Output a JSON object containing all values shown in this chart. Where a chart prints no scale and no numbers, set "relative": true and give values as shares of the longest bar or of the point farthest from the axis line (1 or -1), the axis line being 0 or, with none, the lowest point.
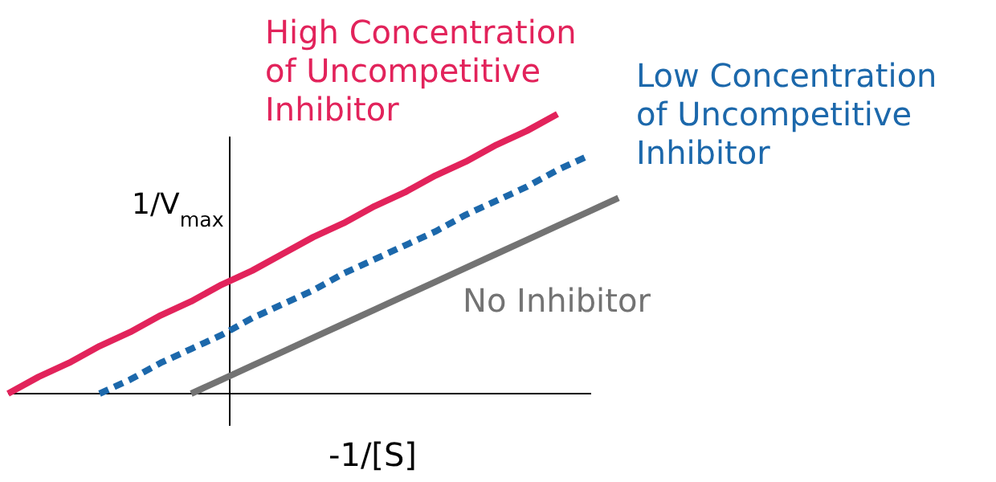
{
  "chart_data": {
    "type": "line",
    "relative": true,
    "xlabel": "-1/[S]",
    "ylabel": "1/V$_{max}$",
    "legend": false,
    "marker": "none",
    "categories": [
      null,
      null,
      null,
      null,
      null,
      null,
      null,
      null,
      null,
      null,
      null,
      null,
      null,
      null,
      null,
      null,
      null,
      null,
      null,
      null,
      null
    ],
    "series": [
      {
        "name": "High Concentration of Uncompetitive Inhibitor",
        "color": "#e2235b",
        "line_style": "solid",
        "values": [
          0,
          0.06,
          0.11,
          0.17,
          0.22,
          0.28,
          0.33,
          0.39,
          0.44,
          0.5,
          0.56,
          0.61,
          0.67,
          0.72,
          0.78,
          0.83,
          0.89,
          0.94,
          1,
          null,
          null
        ]
      },
      {
        "name": "Low Concentration of Uncompetitive Inhibitor",
        "color": "#1c68ab",
        "line_style": "dashed",
        "values": [
          null,
          null,
          null,
          0,
          0.05,
          0.11,
          0.16,
          0.21,
          0.27,
          0.32,
          0.37,
          0.43,
          0.48,
          0.53,
          0.58,
          0.64,
          0.69,
          0.74,
          0.8,
          0.85,
          null
        ]
      },
      {
        "name": "No Inhibitor",
        "color": "#737373",
        "line_style": "solid",
        "values": [
          null,
          null,
          null,
          null,
          null,
          null,
          0,
          0.05,
          0.1,
          0.15,
          0.2,
          0.25,
          0.3,
          0.35,
          0.4,
          0.45,
          0.5,
          0.55,
          0.6,
          0.65,
          0.7
        ]
      }
    ]
  }
}
